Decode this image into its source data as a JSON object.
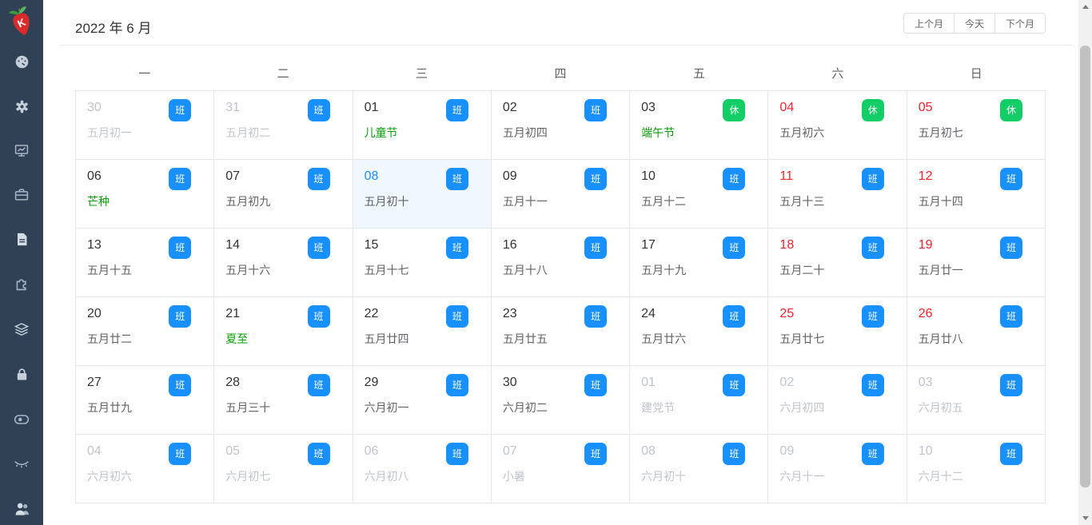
{
  "header": {
    "title": "2022 年 6 月",
    "buttons": {
      "prev": "上个月",
      "today": "今天",
      "next": "下个月"
    }
  },
  "sidebar": {
    "logo": "strawberry-logo",
    "icons": [
      "dashboard-gauge-icon",
      "gear-icon",
      "monitor-chart-icon",
      "briefcase-icon",
      "document-icon",
      "puzzle-icon",
      "layers-icon",
      "lock-icon",
      "toggle-icon",
      "eye-closed-icon",
      "users-icon"
    ]
  },
  "calendar": {
    "weekdays": [
      "一",
      "二",
      "三",
      "四",
      "五",
      "六",
      "日"
    ],
    "badge_labels": {
      "work": "班",
      "rest": "休"
    },
    "weeks": [
      [
        {
          "day": "30",
          "lunar": "五月初一",
          "state": "other",
          "badge": "work"
        },
        {
          "day": "31",
          "lunar": "五月初二",
          "state": "other",
          "badge": "work"
        },
        {
          "day": "01",
          "lunar": "儿童节",
          "state": "normal",
          "festival": true,
          "badge": "work"
        },
        {
          "day": "02",
          "lunar": "五月初四",
          "state": "normal",
          "badge": "work"
        },
        {
          "day": "03",
          "lunar": "端午节",
          "state": "normal",
          "festival": true,
          "badge": "rest"
        },
        {
          "day": "04",
          "lunar": "五月初六",
          "state": "weekend",
          "badge": "rest"
        },
        {
          "day": "05",
          "lunar": "五月初七",
          "state": "weekend",
          "badge": "rest"
        }
      ],
      [
        {
          "day": "06",
          "lunar": "芒种",
          "state": "normal",
          "festival": true,
          "badge": "work"
        },
        {
          "day": "07",
          "lunar": "五月初九",
          "state": "normal",
          "badge": "work"
        },
        {
          "day": "08",
          "lunar": "五月初十",
          "state": "today",
          "badge": "work"
        },
        {
          "day": "09",
          "lunar": "五月十一",
          "state": "normal",
          "badge": "work"
        },
        {
          "day": "10",
          "lunar": "五月十二",
          "state": "normal",
          "badge": "work"
        },
        {
          "day": "11",
          "lunar": "五月十三",
          "state": "weekend",
          "badge": "work"
        },
        {
          "day": "12",
          "lunar": "五月十四",
          "state": "weekend",
          "badge": "work"
        }
      ],
      [
        {
          "day": "13",
          "lunar": "五月十五",
          "state": "normal",
          "badge": "work"
        },
        {
          "day": "14",
          "lunar": "五月十六",
          "state": "normal",
          "badge": "work"
        },
        {
          "day": "15",
          "lunar": "五月十七",
          "state": "normal",
          "badge": "work"
        },
        {
          "day": "16",
          "lunar": "五月十八",
          "state": "normal",
          "badge": "work"
        },
        {
          "day": "17",
          "lunar": "五月十九",
          "state": "normal",
          "badge": "work"
        },
        {
          "day": "18",
          "lunar": "五月二十",
          "state": "weekend",
          "badge": "work"
        },
        {
          "day": "19",
          "lunar": "五月廿一",
          "state": "weekend",
          "badge": "work"
        }
      ],
      [
        {
          "day": "20",
          "lunar": "五月廿二",
          "state": "normal",
          "badge": "work"
        },
        {
          "day": "21",
          "lunar": "夏至",
          "state": "normal",
          "festival": true,
          "badge": "work"
        },
        {
          "day": "22",
          "lunar": "五月廿四",
          "state": "normal",
          "badge": "work"
        },
        {
          "day": "23",
          "lunar": "五月廿五",
          "state": "normal",
          "badge": "work"
        },
        {
          "day": "24",
          "lunar": "五月廿六",
          "state": "normal",
          "badge": "work"
        },
        {
          "day": "25",
          "lunar": "五月廿七",
          "state": "weekend",
          "badge": "work"
        },
        {
          "day": "26",
          "lunar": "五月廿八",
          "state": "weekend",
          "badge": "work"
        }
      ],
      [
        {
          "day": "27",
          "lunar": "五月廿九",
          "state": "normal",
          "badge": "work"
        },
        {
          "day": "28",
          "lunar": "五月三十",
          "state": "normal",
          "badge": "work"
        },
        {
          "day": "29",
          "lunar": "六月初一",
          "state": "normal",
          "badge": "work"
        },
        {
          "day": "30",
          "lunar": "六月初二",
          "state": "normal",
          "badge": "work"
        },
        {
          "day": "01",
          "lunar": "建党节",
          "state": "other",
          "badge": "work"
        },
        {
          "day": "02",
          "lunar": "六月初四",
          "state": "other",
          "badge": "work"
        },
        {
          "day": "03",
          "lunar": "六月初五",
          "state": "other",
          "badge": "work"
        }
      ],
      [
        {
          "day": "04",
          "lunar": "六月初六",
          "state": "other",
          "badge": "work"
        },
        {
          "day": "05",
          "lunar": "六月初七",
          "state": "other",
          "badge": "work"
        },
        {
          "day": "06",
          "lunar": "六月初八",
          "state": "other",
          "badge": "work"
        },
        {
          "day": "07",
          "lunar": "小暑",
          "state": "other",
          "badge": "work"
        },
        {
          "day": "08",
          "lunar": "六月初十",
          "state": "other",
          "badge": "work"
        },
        {
          "day": "09",
          "lunar": "六月十一",
          "state": "other",
          "badge": "work"
        },
        {
          "day": "10",
          "lunar": "六月十二",
          "state": "other",
          "badge": "work"
        }
      ]
    ]
  },
  "colors": {
    "work_badge": "#1890ff",
    "rest_badge": "#13ce66",
    "weekend_red": "#f5222d",
    "festival_green": "#0a9d0a",
    "today_blue": "#1890ff",
    "today_bg": "#f0f7fe",
    "other_month_gray": "#c0c4cc",
    "sidebar_bg": "#304156"
  }
}
